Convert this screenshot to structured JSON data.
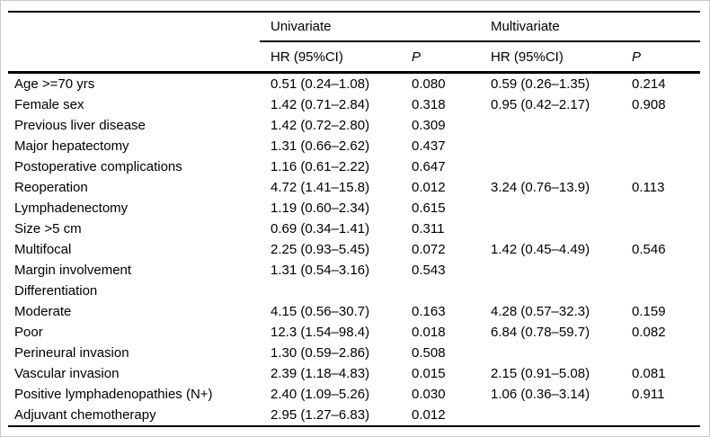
{
  "colors": {
    "text": "#000000",
    "rule": "#000000",
    "background": "#ffffff",
    "frame_border": "#c9c9c9"
  },
  "header": {
    "groups": [
      {
        "label": "Univariate"
      },
      {
        "label": "Multivariate"
      }
    ],
    "columns": {
      "hr": "HR (95%CI)",
      "p": "P"
    }
  },
  "table": {
    "rows": [
      {
        "variable": "Age >=70 yrs",
        "uni_hr": "0.51 (0.24–1.08)",
        "uni_p": "0.080",
        "multi_hr": "0.59 (0.26–1.35)",
        "multi_p": "0.214"
      },
      {
        "variable": "Female sex",
        "uni_hr": "1.42 (0.71–2.84)",
        "uni_p": "0.318",
        "multi_hr": "0.95 (0.42–2.17)",
        "multi_p": "0.908"
      },
      {
        "variable": "Previous liver disease",
        "uni_hr": "1.42 (0.72–2.80)",
        "uni_p": "0.309",
        "multi_hr": "",
        "multi_p": ""
      },
      {
        "variable": "Major hepatectomy",
        "uni_hr": "1.31 (0.66–2.62)",
        "uni_p": "0.437",
        "multi_hr": "",
        "multi_p": ""
      },
      {
        "variable": "Postoperative complications",
        "uni_hr": "1.16 (0.61–2.22)",
        "uni_p": "0.647",
        "multi_hr": "",
        "multi_p": ""
      },
      {
        "variable": "Reoperation",
        "uni_hr": "4.72 (1.41–15.8)",
        "uni_p": "0.012",
        "multi_hr": "3.24 (0.76–13.9)",
        "multi_p": "0.113"
      },
      {
        "variable": "Lymphadenectomy",
        "uni_hr": "1.19 (0.60–2.34)",
        "uni_p": "0.615",
        "multi_hr": "",
        "multi_p": ""
      },
      {
        "variable": "Size >5 cm",
        "uni_hr": "0.69 (0.34–1.41)",
        "uni_p": "0.311",
        "multi_hr": "",
        "multi_p": ""
      },
      {
        "variable": "Multifocal",
        "uni_hr": "2.25 (0.93–5.45)",
        "uni_p": "0.072",
        "multi_hr": "1.42 (0.45–4.49)",
        "multi_p": "0.546"
      },
      {
        "variable": "Margin involvement",
        "uni_hr": "1.31 (0.54–3.16)",
        "uni_p": "0.543",
        "multi_hr": "",
        "multi_p": ""
      },
      {
        "variable": "Differentiation",
        "uni_hr": "",
        "uni_p": "",
        "multi_hr": "",
        "multi_p": ""
      },
      {
        "variable": "Moderate",
        "uni_hr": "4.15 (0.56–30.7)",
        "uni_p": "0.163",
        "multi_hr": "4.28 (0.57–32.3)",
        "multi_p": "0.159"
      },
      {
        "variable": "Poor",
        "uni_hr": "12.3 (1.54–98.4)",
        "uni_p": "0.018",
        "multi_hr": "6.84 (0.78–59.7)",
        "multi_p": "0.082"
      },
      {
        "variable": "Perineural invasion",
        "uni_hr": "1.30 (0.59–2.86)",
        "uni_p": "0.508",
        "multi_hr": "",
        "multi_p": ""
      },
      {
        "variable": "Vascular invasion",
        "uni_hr": "2.39 (1.18–4.83)",
        "uni_p": "0.015",
        "multi_hr": "2.15 (0.91–5.08)",
        "multi_p": "0.081"
      },
      {
        "variable": "Positive lymphadenopathies (N+)",
        "uni_hr": "2.40 (1.09–5.26)",
        "uni_p": "0.030",
        "multi_hr": "1.06 (0.36–3.14)",
        "multi_p": "0.911"
      },
      {
        "variable": "Adjuvant chemotherapy",
        "uni_hr": "2.95 (1.27–6.83)",
        "uni_p": "0.012",
        "multi_hr": "",
        "multi_p": ""
      }
    ]
  }
}
